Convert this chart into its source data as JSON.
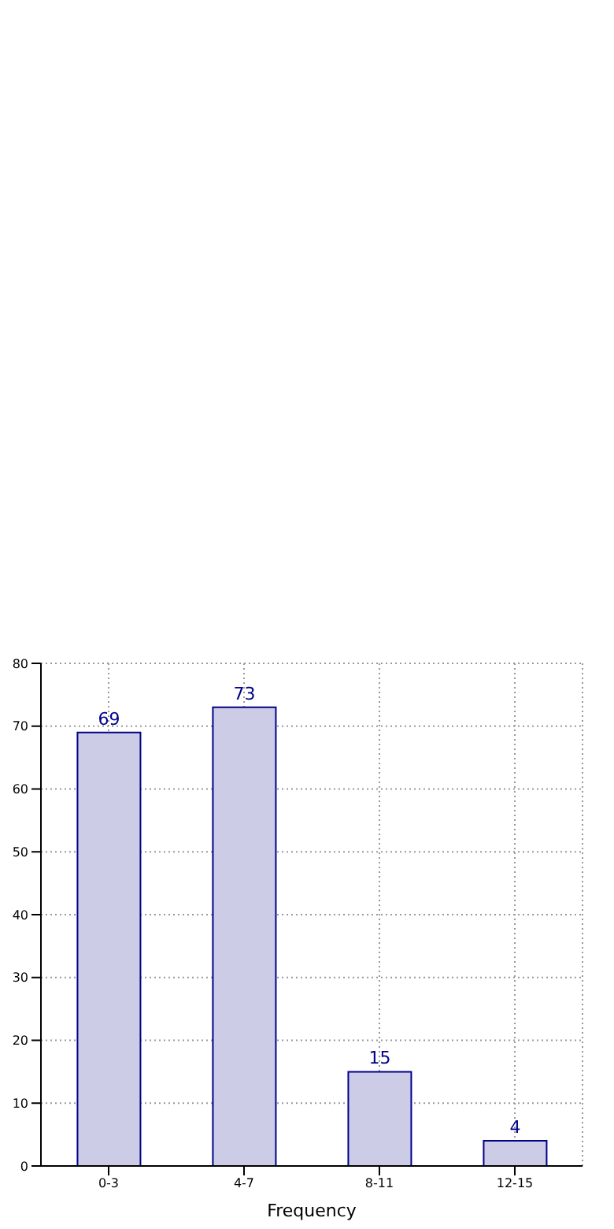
{
  "chart_data": {
    "type": "bar",
    "xlabel": "Frequency",
    "categories": [
      "0-3",
      "4-7",
      "8-11",
      "12-15"
    ],
    "values": [
      69,
      73,
      15,
      4
    ],
    "color": "#cccce6",
    "ylim": [
      0,
      80
    ],
    "yticks": [
      0,
      10,
      20,
      30,
      40,
      50,
      60,
      70,
      80
    ],
    "grid": true,
    "data_labels": true
  }
}
